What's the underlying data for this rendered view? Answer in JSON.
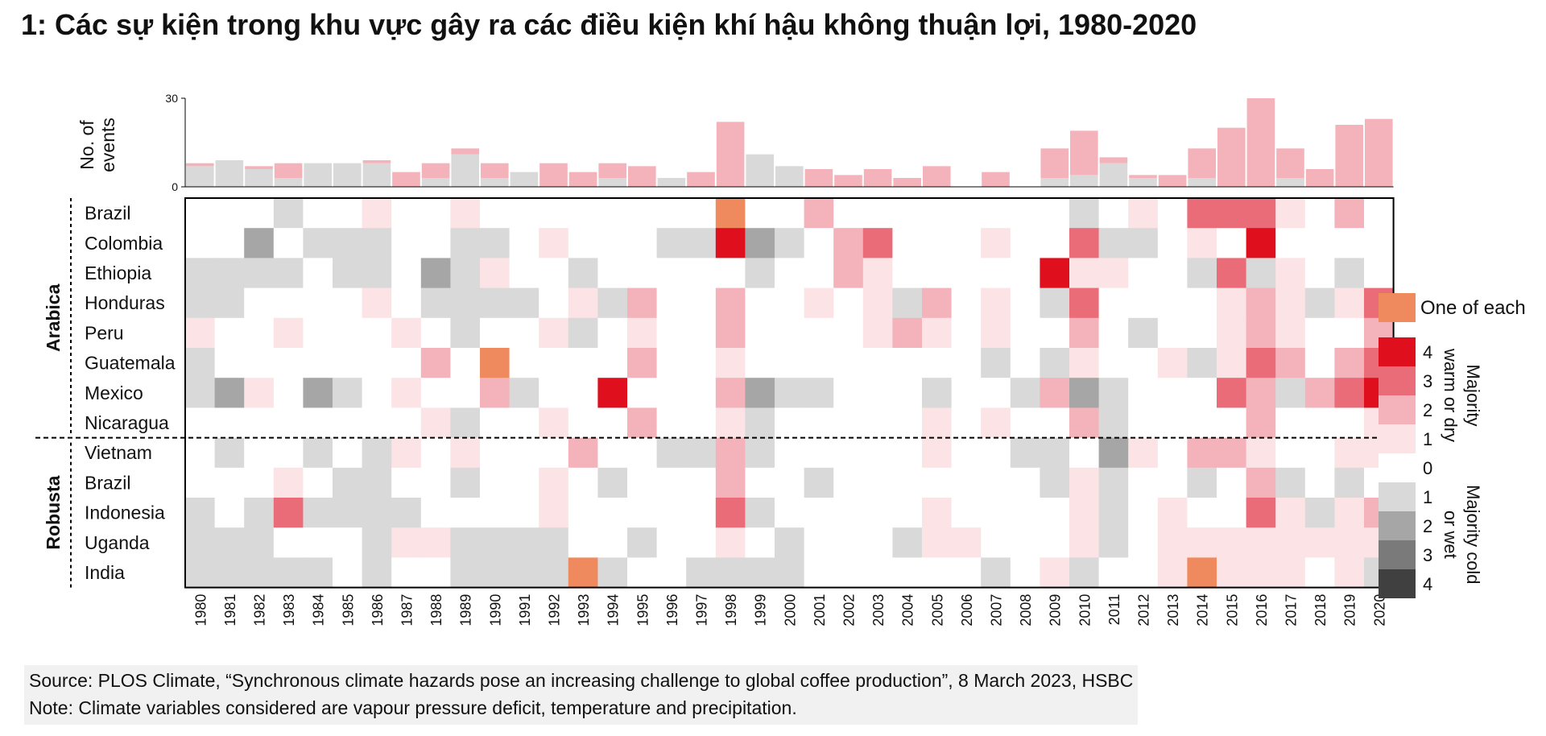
{
  "title": "1: Các sự kiện trong khu vực gây ra các điều kiện khí hậu không thuận lợi, 1980-2020",
  "source": "Source: PLOS Climate, “Synchronous climate hazards pose an increasing challenge to global coffee production”, 8 March 2023, HSBC",
  "note": "Note: Climate variables considered are vapour pressure deficit, temperature and precipitation.",
  "chart_data": [
    {
      "type": "bar",
      "ylabel": "No. of events",
      "ylim": [
        0,
        30
      ],
      "yticks": [
        0,
        30
      ],
      "categories": [
        "1980",
        "1981",
        "1982",
        "1983",
        "1984",
        "1985",
        "1986",
        "1987",
        "1988",
        "1989",
        "1990",
        "1991",
        "1992",
        "1993",
        "1994",
        "1995",
        "1996",
        "1997",
        "1998",
        "1999",
        "2000",
        "2001",
        "2002",
        "2003",
        "2004",
        "2005",
        "2006",
        "2007",
        "2008",
        "2009",
        "2010",
        "2011",
        "2012",
        "2013",
        "2014",
        "2015",
        "2016",
        "2017",
        "2018",
        "2019",
        "2020"
      ],
      "series": [
        {
          "key": "dry",
          "values": [
            1,
            0,
            1,
            5,
            0,
            0,
            1,
            5,
            5,
            2,
            5,
            0,
            8,
            5,
            5,
            7,
            0,
            5,
            22,
            0,
            0,
            6,
            4,
            6,
            3,
            7,
            0,
            5,
            0,
            10,
            15,
            2,
            1,
            4,
            10,
            20,
            30,
            10,
            6,
            21,
            23
          ]
        },
        {
          "key": "wet",
          "values": [
            7,
            9,
            6,
            3,
            8,
            8,
            8,
            0,
            3,
            11,
            3,
            5,
            0,
            0,
            3,
            0,
            3,
            0,
            0,
            11,
            7,
            0,
            0,
            0,
            0,
            0,
            0,
            0,
            0,
            3,
            4,
            8,
            3,
            0,
            3,
            0,
            0,
            3,
            0,
            0,
            0
          ]
        }
      ],
      "colors": {
        "dry": "#f4b3ba",
        "wet": "#d9d9d9"
      }
    },
    {
      "type": "heatmap",
      "x": [
        "1980",
        "1981",
        "1982",
        "1983",
        "1984",
        "1985",
        "1986",
        "1987",
        "1988",
        "1989",
        "1990",
        "1991",
        "1992",
        "1993",
        "1994",
        "1995",
        "1996",
        "1997",
        "1998",
        "1999",
        "2000",
        "2001",
        "2002",
        "2003",
        "2004",
        "2005",
        "2006",
        "2007",
        "2008",
        "2009",
        "2010",
        "2011",
        "2012",
        "2013",
        "2014",
        "2015",
        "2016",
        "2017",
        "2018",
        "2019",
        "2020"
      ],
      "groups": [
        {
          "name": "Arabica",
          "rows": [
            "Brazil",
            "Colombia",
            "Ethiopia",
            "Honduras",
            "Peru",
            "Guatemala",
            "Mexico",
            "Nicaragua"
          ]
        },
        {
          "name": "Robusta",
          "rows": [
            "Vietnam",
            "Brazil",
            "Indonesia",
            "Uganda",
            "India"
          ]
        }
      ],
      "encoding": "positive = majority warm or dry (1-4), negative = majority cold or wet (-1 to -4), 'X' = one of each",
      "values": [
        [
          0,
          0,
          0,
          -1,
          0,
          0,
          1,
          0,
          0,
          1,
          0,
          0,
          0,
          0,
          0,
          0,
          0,
          0,
          "X",
          0,
          0,
          2,
          0,
          0,
          0,
          0,
          0,
          0,
          0,
          0,
          -1,
          0,
          1,
          0,
          3,
          3,
          3,
          1,
          0,
          2,
          0
        ],
        [
          0,
          0,
          -2,
          0,
          -1,
          -1,
          -1,
          0,
          0,
          -1,
          -1,
          0,
          1,
          0,
          0,
          0,
          -1,
          -1,
          4,
          -2,
          -1,
          0,
          2,
          3,
          0,
          0,
          0,
          1,
          0,
          0,
          3,
          -1,
          -1,
          0,
          1,
          0,
          4,
          0,
          0,
          0,
          0
        ],
        [
          -1,
          -1,
          -1,
          -1,
          0,
          -1,
          -1,
          0,
          -2,
          -1,
          1,
          0,
          0,
          -1,
          0,
          0,
          0,
          0,
          0,
          -1,
          0,
          0,
          2,
          1,
          0,
          0,
          0,
          0,
          0,
          4,
          1,
          1,
          0,
          0,
          -1,
          3,
          -1,
          1,
          0,
          -1,
          0
        ],
        [
          -1,
          -1,
          0,
          0,
          0,
          0,
          1,
          0,
          -1,
          -1,
          -1,
          -1,
          0,
          1,
          -1,
          2,
          0,
          0,
          2,
          0,
          0,
          1,
          0,
          1,
          -1,
          2,
          0,
          1,
          0,
          -1,
          3,
          0,
          0,
          0,
          0,
          1,
          2,
          1,
          -1,
          1,
          3
        ],
        [
          1,
          0,
          0,
          1,
          0,
          0,
          0,
          1,
          0,
          -1,
          0,
          0,
          1,
          -1,
          0,
          1,
          0,
          0,
          2,
          0,
          0,
          0,
          0,
          1,
          2,
          1,
          0,
          1,
          0,
          0,
          2,
          0,
          -1,
          0,
          0,
          1,
          2,
          1,
          0,
          0,
          2
        ],
        [
          -1,
          0,
          0,
          0,
          0,
          0,
          0,
          0,
          2,
          0,
          "X",
          0,
          0,
          0,
          0,
          2,
          0,
          0,
          1,
          0,
          0,
          0,
          0,
          0,
          0,
          0,
          0,
          -1,
          0,
          -1,
          1,
          0,
          0,
          1,
          -1,
          1,
          3,
          2,
          0,
          2,
          3
        ],
        [
          -1,
          -2,
          1,
          0,
          -2,
          -1,
          0,
          1,
          0,
          0,
          2,
          -1,
          0,
          0,
          4,
          0,
          0,
          0,
          2,
          -2,
          -1,
          -1,
          0,
          0,
          0,
          -1,
          0,
          0,
          -1,
          2,
          -2,
          -1,
          0,
          0,
          0,
          3,
          2,
          -1,
          2,
          3,
          4
        ],
        [
          0,
          0,
          0,
          0,
          0,
          0,
          0,
          0,
          1,
          -1,
          0,
          0,
          1,
          0,
          0,
          2,
          0,
          0,
          1,
          -1,
          0,
          0,
          0,
          0,
          0,
          1,
          0,
          1,
          0,
          0,
          2,
          -1,
          0,
          0,
          0,
          0,
          2,
          0,
          0,
          0,
          1
        ],
        [
          0,
          -1,
          0,
          0,
          -1,
          0,
          -1,
          1,
          0,
          1,
          0,
          0,
          0,
          2,
          0,
          0,
          -1,
          -1,
          2,
          -1,
          0,
          0,
          0,
          0,
          0,
          1,
          0,
          0,
          -1,
          -1,
          0,
          -2,
          1,
          0,
          2,
          2,
          1,
          0,
          0,
          1,
          1
        ],
        [
          0,
          0,
          0,
          1,
          0,
          -1,
          -1,
          0,
          0,
          -1,
          0,
          0,
          1,
          0,
          -1,
          0,
          0,
          0,
          2,
          0,
          0,
          -1,
          0,
          0,
          0,
          0,
          0,
          0,
          0,
          -1,
          1,
          -1,
          0,
          0,
          -1,
          0,
          2,
          -1,
          0,
          -1,
          0
        ],
        [
          -1,
          0,
          -1,
          3,
          -1,
          -1,
          -1,
          -1,
          0,
          0,
          0,
          0,
          1,
          0,
          0,
          0,
          0,
          0,
          3,
          -1,
          0,
          0,
          0,
          0,
          0,
          1,
          0,
          0,
          0,
          0,
          1,
          -1,
          0,
          1,
          0,
          0,
          3,
          1,
          -1,
          1,
          2
        ],
        [
          -1,
          -1,
          -1,
          0,
          0,
          0,
          -1,
          1,
          1,
          -1,
          -1,
          -1,
          -1,
          0,
          0,
          -1,
          0,
          0,
          1,
          0,
          -1,
          0,
          0,
          0,
          -1,
          1,
          1,
          0,
          0,
          0,
          1,
          -1,
          0,
          1,
          1,
          1,
          1,
          1,
          1,
          1,
          1
        ],
        [
          -1,
          -1,
          -1,
          -1,
          -1,
          0,
          -1,
          0,
          0,
          -1,
          -1,
          -1,
          -1,
          "X",
          -1,
          0,
          0,
          -1,
          -1,
          -1,
          -1,
          0,
          0,
          0,
          0,
          0,
          0,
          -1,
          0,
          1,
          -1,
          0,
          0,
          1,
          "X",
          1,
          1,
          1,
          0,
          1,
          -1
        ]
      ]
    }
  ],
  "legend": {
    "one_of_each_label": "One of each",
    "levels": [
      "4",
      "3",
      "2",
      "1",
      "0",
      "1",
      "2",
      "3",
      "4"
    ],
    "warm_label": "Majority warm or dry",
    "cold_label": "Majority cold or wet",
    "colors": {
      "one_of_each": "#ef8a5e",
      "dry": [
        "#fbe3e6",
        "#f4b3ba",
        "#ea6c78",
        "#e00f1e"
      ],
      "zero": "#ffffff",
      "wet": [
        "#d9d9d9",
        "#a6a6a6",
        "#7a7a7a",
        "#404040"
      ]
    }
  }
}
